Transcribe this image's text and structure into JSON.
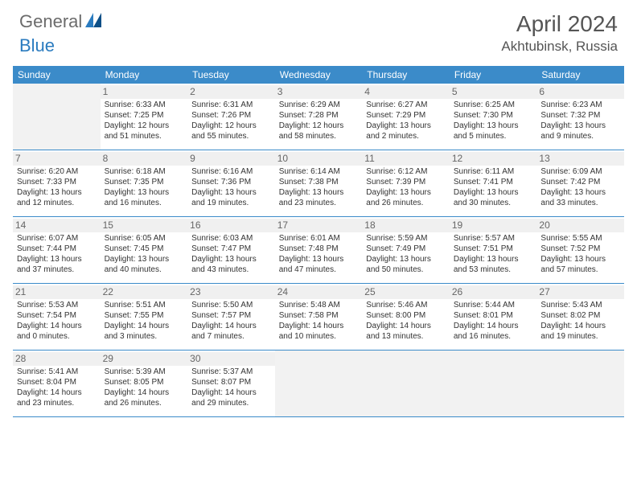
{
  "logo": {
    "text1": "General",
    "text2": "Blue"
  },
  "title": "April 2024",
  "location": "Akhtubinsk, Russia",
  "colors": {
    "header_bg": "#3b8bc9",
    "header_text": "#ffffff",
    "border": "#3b8bc9",
    "daynum_bg": "#f0f0f0",
    "empty_bg": "#f2f2f2",
    "logo_gray": "#6b6b6b",
    "logo_blue": "#2a7bbf"
  },
  "dow": [
    "Sunday",
    "Monday",
    "Tuesday",
    "Wednesday",
    "Thursday",
    "Friday",
    "Saturday"
  ],
  "weeks": [
    [
      null,
      {
        "n": "1",
        "sr": "6:33 AM",
        "ss": "7:25 PM",
        "dl": "12 hours and 51 minutes."
      },
      {
        "n": "2",
        "sr": "6:31 AM",
        "ss": "7:26 PM",
        "dl": "12 hours and 55 minutes."
      },
      {
        "n": "3",
        "sr": "6:29 AM",
        "ss": "7:28 PM",
        "dl": "12 hours and 58 minutes."
      },
      {
        "n": "4",
        "sr": "6:27 AM",
        "ss": "7:29 PM",
        "dl": "13 hours and 2 minutes."
      },
      {
        "n": "5",
        "sr": "6:25 AM",
        "ss": "7:30 PM",
        "dl": "13 hours and 5 minutes."
      },
      {
        "n": "6",
        "sr": "6:23 AM",
        "ss": "7:32 PM",
        "dl": "13 hours and 9 minutes."
      }
    ],
    [
      {
        "n": "7",
        "sr": "6:20 AM",
        "ss": "7:33 PM",
        "dl": "13 hours and 12 minutes."
      },
      {
        "n": "8",
        "sr": "6:18 AM",
        "ss": "7:35 PM",
        "dl": "13 hours and 16 minutes."
      },
      {
        "n": "9",
        "sr": "6:16 AM",
        "ss": "7:36 PM",
        "dl": "13 hours and 19 minutes."
      },
      {
        "n": "10",
        "sr": "6:14 AM",
        "ss": "7:38 PM",
        "dl": "13 hours and 23 minutes."
      },
      {
        "n": "11",
        "sr": "6:12 AM",
        "ss": "7:39 PM",
        "dl": "13 hours and 26 minutes."
      },
      {
        "n": "12",
        "sr": "6:11 AM",
        "ss": "7:41 PM",
        "dl": "13 hours and 30 minutes."
      },
      {
        "n": "13",
        "sr": "6:09 AM",
        "ss": "7:42 PM",
        "dl": "13 hours and 33 minutes."
      }
    ],
    [
      {
        "n": "14",
        "sr": "6:07 AM",
        "ss": "7:44 PM",
        "dl": "13 hours and 37 minutes."
      },
      {
        "n": "15",
        "sr": "6:05 AM",
        "ss": "7:45 PM",
        "dl": "13 hours and 40 minutes."
      },
      {
        "n": "16",
        "sr": "6:03 AM",
        "ss": "7:47 PM",
        "dl": "13 hours and 43 minutes."
      },
      {
        "n": "17",
        "sr": "6:01 AM",
        "ss": "7:48 PM",
        "dl": "13 hours and 47 minutes."
      },
      {
        "n": "18",
        "sr": "5:59 AM",
        "ss": "7:49 PM",
        "dl": "13 hours and 50 minutes."
      },
      {
        "n": "19",
        "sr": "5:57 AM",
        "ss": "7:51 PM",
        "dl": "13 hours and 53 minutes."
      },
      {
        "n": "20",
        "sr": "5:55 AM",
        "ss": "7:52 PM",
        "dl": "13 hours and 57 minutes."
      }
    ],
    [
      {
        "n": "21",
        "sr": "5:53 AM",
        "ss": "7:54 PM",
        "dl": "14 hours and 0 minutes."
      },
      {
        "n": "22",
        "sr": "5:51 AM",
        "ss": "7:55 PM",
        "dl": "14 hours and 3 minutes."
      },
      {
        "n": "23",
        "sr": "5:50 AM",
        "ss": "7:57 PM",
        "dl": "14 hours and 7 minutes."
      },
      {
        "n": "24",
        "sr": "5:48 AM",
        "ss": "7:58 PM",
        "dl": "14 hours and 10 minutes."
      },
      {
        "n": "25",
        "sr": "5:46 AM",
        "ss": "8:00 PM",
        "dl": "14 hours and 13 minutes."
      },
      {
        "n": "26",
        "sr": "5:44 AM",
        "ss": "8:01 PM",
        "dl": "14 hours and 16 minutes."
      },
      {
        "n": "27",
        "sr": "5:43 AM",
        "ss": "8:02 PM",
        "dl": "14 hours and 19 minutes."
      }
    ],
    [
      {
        "n": "28",
        "sr": "5:41 AM",
        "ss": "8:04 PM",
        "dl": "14 hours and 23 minutes."
      },
      {
        "n": "29",
        "sr": "5:39 AM",
        "ss": "8:05 PM",
        "dl": "14 hours and 26 minutes."
      },
      {
        "n": "30",
        "sr": "5:37 AM",
        "ss": "8:07 PM",
        "dl": "14 hours and 29 minutes."
      },
      null,
      null,
      null,
      null
    ]
  ],
  "labels": {
    "sunrise": "Sunrise:",
    "sunset": "Sunset:",
    "daylight": "Daylight:"
  }
}
